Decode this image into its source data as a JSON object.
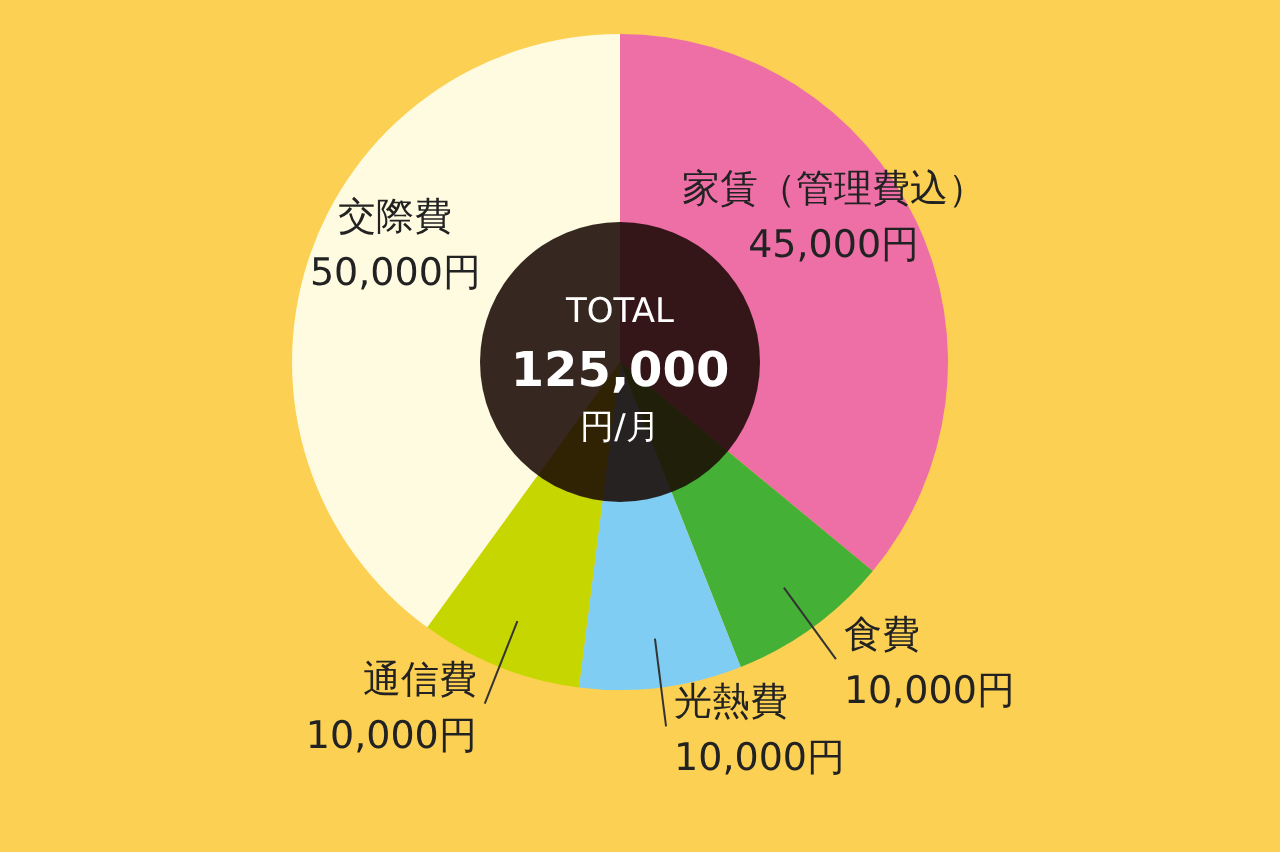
{
  "chart_data": {
    "type": "donut",
    "categories": [
      "家賃（管理費込）",
      "食費",
      "光熱費",
      "通信費",
      "交際費"
    ],
    "values": [
      45000,
      10000,
      10000,
      10000,
      50000
    ],
    "value_labels": [
      "45,000円",
      "10,000円",
      "10,000円",
      "10,000円",
      "50,000円"
    ],
    "colors": [
      "#ee6fa6",
      "#44b035",
      "#7fcdf3",
      "#c6d600",
      "#fffbe0"
    ],
    "annotations": [
      "TOTAL",
      "125,000",
      "円/月"
    ],
    "legend": false
  }
}
